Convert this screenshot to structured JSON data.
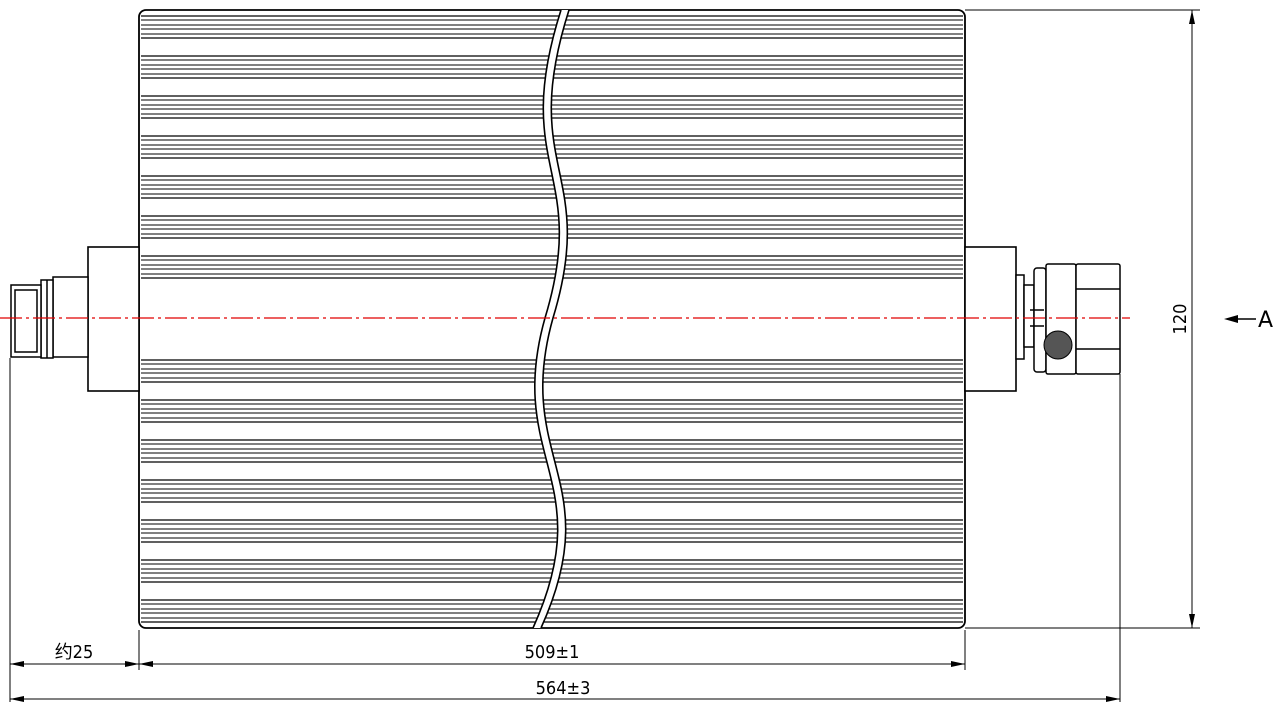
{
  "drawing": {
    "dimensions": {
      "connector_length": "约25",
      "body_length": "509±1",
      "overall_length": "564±3",
      "height": "120"
    },
    "view_marker": "A",
    "colors": {
      "line": "#000000",
      "centerline": "#e00000",
      "background": "#ffffff"
    }
  }
}
